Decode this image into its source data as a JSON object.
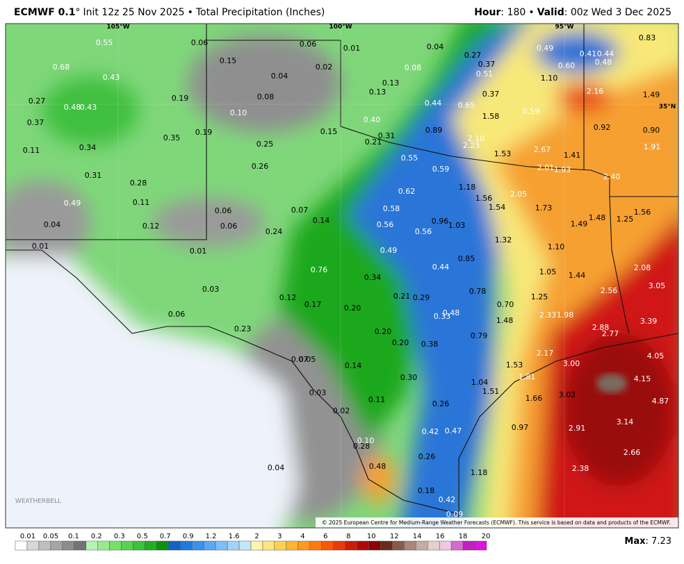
{
  "header": {
    "model": "ECMWF 0.1",
    "degree": "°",
    "init": "Init 12z 25 Nov 2025",
    "separator": "•",
    "product": "Total Precipitation (Inches)",
    "hour_label": "Hour",
    "hour": ": 180",
    "valid_label": "Valid",
    "valid": ": 00z Wed 3 Dec 2025"
  },
  "map": {
    "graticule": [
      "105°W",
      "100°W",
      "95°W",
      "35°N"
    ],
    "labels": [
      "0.55",
      "0.06",
      "0.06",
      "0.01",
      "0.04",
      "0.27",
      "0.49",
      "0.41",
      "0.44",
      "0.83",
      "0.68",
      "0.15",
      "0.02",
      "0.08",
      "0.37",
      "0.60",
      "0.48",
      "0.43",
      "0.04",
      "0.51",
      "1.10",
      "0.13",
      "0.13",
      "0.19",
      "0.08",
      "0.37",
      "2.16",
      "1.49",
      "0.27",
      "0.48",
      "0.43",
      "0.44",
      "0.65",
      "0.10",
      "0.59",
      "1.58",
      "0.37",
      "0.40",
      "0.19",
      "0.15",
      "0.31",
      "0.89",
      "0.92",
      "0.90",
      "0.35",
      "0.21",
      "0.34",
      "2.10",
      "0.25",
      "2.23",
      "1.53",
      "2.67",
      "1.41",
      "1.91",
      "0.11",
      "0.55",
      "0.26",
      "0.59",
      "2.01",
      "1.93",
      "2.40",
      "0.31",
      "0.28",
      "1.18",
      "0.62",
      "2.05",
      "1.56",
      "0.49",
      "0.11",
      "1.54",
      "1.73",
      "0.58",
      "0.07",
      "0.06",
      "1.56",
      "0.14",
      "1.48",
      "1.25",
      "0.96",
      "0.04",
      "0.12",
      "0.06",
      "0.56",
      "1.03",
      "1.49",
      "0.56",
      "0.24",
      "1.32",
      "0.01",
      "1.10",
      "0.01",
      "0.49",
      "0.85",
      "0.44",
      "2.08",
      "0.76",
      "1.05",
      "1.44",
      "0.34",
      "3.05",
      "0.03",
      "0.78",
      "2.56",
      "0.12",
      "0.21",
      "0.29",
      "1.25",
      "0.17",
      "0.70",
      "0.20",
      "0.48",
      "0.33",
      "2.33",
      "1.98",
      "0.06",
      "1.48",
      "3.39",
      "2.88",
      "0.23",
      "0.20",
      "2.77",
      "0.79",
      "0.20",
      "0.38",
      "0.07",
      "0.05",
      "2.17",
      "4.05",
      "0.14",
      "1.53",
      "3.00",
      "0.30",
      "1.81",
      "4.15",
      "1.04",
      "1.51",
      "1.66",
      "3.02",
      "0.03",
      "0.11",
      "4.87",
      "0.26",
      "0.02",
      "0.97",
      "3.14",
      "0.42",
      "0.47",
      "2.91",
      "0.10",
      "0.28",
      "0.26",
      "2.66",
      "0.48",
      "0.04",
      "2.38",
      "1.18",
      "0.18",
      "0.42",
      "0.09"
    ],
    "credit": "© 2025 European Centre for Medium-Range Weather Forecasts (ECMWF). This service is based on data and products of the ECMWF.",
    "logo": "WEATHERBELL"
  },
  "colorbar": {
    "labels": [
      "0.01",
      "0.05",
      "0.1",
      "0.2",
      "0.3",
      "0.5",
      "0.7",
      "0.9",
      "1.2",
      "1.6",
      "2",
      "3",
      "4",
      "6",
      "8",
      "10",
      "12",
      "14",
      "16",
      "18",
      "20"
    ]
  },
  "max": {
    "label": "Max",
    "value": ": 7.23"
  }
}
